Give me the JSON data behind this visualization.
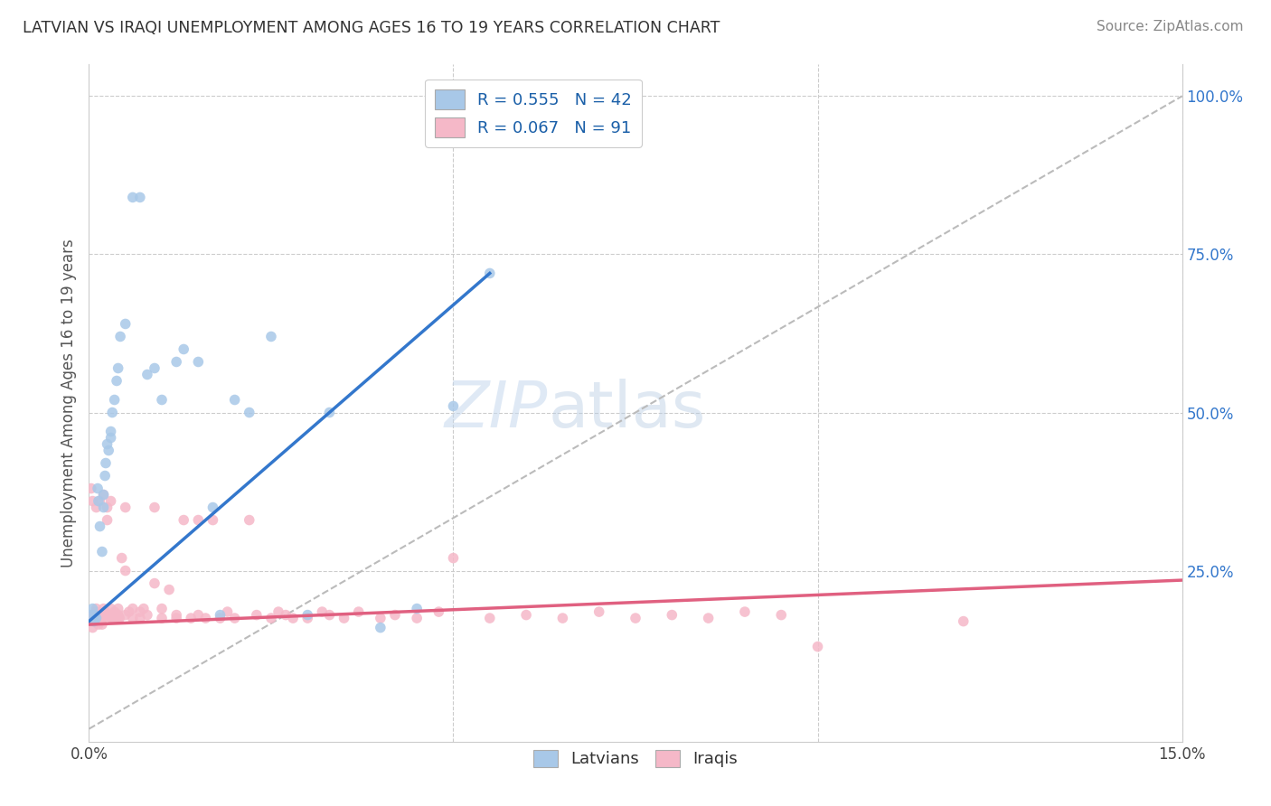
{
  "title": "LATVIAN VS IRAQI UNEMPLOYMENT AMONG AGES 16 TO 19 YEARS CORRELATION CHART",
  "source": "Source: ZipAtlas.com",
  "ylabel": "Unemployment Among Ages 16 to 19 years",
  "xlim": [
    0.0,
    0.15
  ],
  "ylim": [
    -0.02,
    1.05
  ],
  "latvian_color": "#a8c8e8",
  "iraqi_color": "#f5b8c8",
  "latvian_line_color": "#3377cc",
  "iraqi_line_color": "#e06080",
  "diagonal_color": "#bbbbbb",
  "legend_latvian_label": "R = 0.555   N = 42",
  "legend_iraqi_label": "R = 0.067   N = 91",
  "background_color": "#ffffff",
  "grid_color": "#cccccc",
  "watermark": "ZIPatlas",
  "lat_line_x0": 0.0,
  "lat_line_y0": 0.17,
  "lat_line_x1": 0.055,
  "lat_line_y1": 0.72,
  "irq_line_x0": 0.0,
  "irq_line_y0": 0.165,
  "irq_line_x1": 0.15,
  "irq_line_y1": 0.235,
  "latvians_x": [
    0.0003,
    0.0005,
    0.0007,
    0.0008,
    0.001,
    0.0012,
    0.0013,
    0.0015,
    0.0018,
    0.002,
    0.002,
    0.0022,
    0.0023,
    0.0025,
    0.0027,
    0.003,
    0.003,
    0.0032,
    0.0035,
    0.0038,
    0.004,
    0.0043,
    0.005,
    0.006,
    0.007,
    0.008,
    0.009,
    0.01,
    0.012,
    0.013,
    0.015,
    0.017,
    0.018,
    0.02,
    0.022,
    0.025,
    0.03,
    0.033,
    0.04,
    0.045,
    0.05,
    0.055
  ],
  "latvians_y": [
    0.18,
    0.19,
    0.17,
    0.18,
    0.175,
    0.38,
    0.36,
    0.32,
    0.28,
    0.35,
    0.37,
    0.4,
    0.42,
    0.45,
    0.44,
    0.47,
    0.46,
    0.5,
    0.52,
    0.55,
    0.57,
    0.62,
    0.64,
    0.84,
    0.84,
    0.56,
    0.57,
    0.52,
    0.58,
    0.6,
    0.58,
    0.35,
    0.18,
    0.52,
    0.5,
    0.62,
    0.18,
    0.5,
    0.16,
    0.19,
    0.51,
    0.72
  ],
  "iraqis_x": [
    0.0002,
    0.0003,
    0.0005,
    0.0005,
    0.0007,
    0.0008,
    0.001,
    0.001,
    0.0012,
    0.0013,
    0.0015,
    0.0015,
    0.0017,
    0.0018,
    0.002,
    0.002,
    0.002,
    0.0022,
    0.0023,
    0.0025,
    0.003,
    0.003,
    0.003,
    0.0032,
    0.0035,
    0.004,
    0.004,
    0.0042,
    0.0045,
    0.005,
    0.005,
    0.0055,
    0.006,
    0.006,
    0.007,
    0.007,
    0.0075,
    0.008,
    0.009,
    0.009,
    0.01,
    0.01,
    0.011,
    0.012,
    0.012,
    0.013,
    0.014,
    0.015,
    0.015,
    0.016,
    0.017,
    0.018,
    0.019,
    0.02,
    0.022,
    0.023,
    0.025,
    0.026,
    0.027,
    0.028,
    0.03,
    0.032,
    0.033,
    0.035,
    0.037,
    0.04,
    0.042,
    0.045,
    0.048,
    0.05,
    0.055,
    0.06,
    0.065,
    0.07,
    0.075,
    0.08,
    0.085,
    0.09,
    0.095,
    0.1,
    0.0003,
    0.0005,
    0.001,
    0.0015,
    0.002,
    0.0025,
    0.003,
    0.0035,
    0.004,
    0.005,
    0.12
  ],
  "iraqis_y": [
    0.175,
    0.17,
    0.16,
    0.18,
    0.17,
    0.175,
    0.185,
    0.19,
    0.175,
    0.165,
    0.175,
    0.18,
    0.175,
    0.165,
    0.18,
    0.175,
    0.19,
    0.185,
    0.18,
    0.33,
    0.175,
    0.18,
    0.19,
    0.175,
    0.185,
    0.19,
    0.18,
    0.175,
    0.27,
    0.25,
    0.18,
    0.185,
    0.175,
    0.19,
    0.185,
    0.175,
    0.19,
    0.18,
    0.23,
    0.35,
    0.175,
    0.19,
    0.22,
    0.175,
    0.18,
    0.33,
    0.175,
    0.33,
    0.18,
    0.175,
    0.33,
    0.175,
    0.185,
    0.175,
    0.33,
    0.18,
    0.175,
    0.185,
    0.18,
    0.175,
    0.175,
    0.185,
    0.18,
    0.175,
    0.185,
    0.175,
    0.18,
    0.175,
    0.185,
    0.27,
    0.175,
    0.18,
    0.175,
    0.185,
    0.175,
    0.18,
    0.175,
    0.185,
    0.18,
    0.13,
    0.38,
    0.36,
    0.35,
    0.36,
    0.37,
    0.35,
    0.36,
    0.175,
    0.175,
    0.35,
    0.17
  ]
}
